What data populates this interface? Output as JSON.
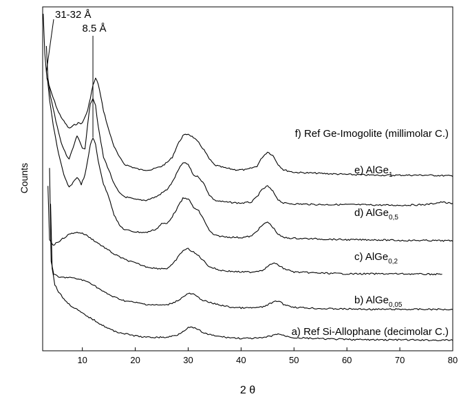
{
  "chart_data": {
    "type": "line",
    "xlabel": "2 θ",
    "ylabel": "Counts",
    "xlim": [
      2.5,
      80
    ],
    "xticks": [
      10,
      20,
      30,
      40,
      50,
      60,
      70,
      80
    ],
    "grid": false,
    "legend": "none",
    "y_units": "arbitrary (curves vertically offset)",
    "annotations": [
      {
        "text": "31-32 Å",
        "x": 3.2,
        "series": "f"
      },
      {
        "text": "8.5 Å",
        "x": 12.0,
        "series": "d"
      }
    ],
    "series": [
      {
        "name": "f",
        "label": {
          "letter": "f)",
          "main": "Ref Ge-Imogolite (millimolar C.)",
          "sub": ""
        },
        "baseline": 4.75,
        "points": [
          [
            2.6,
            9.3
          ],
          [
            2.9,
            8.2
          ],
          [
            3.3,
            7.5
          ],
          [
            3.8,
            7.25
          ],
          [
            4.5,
            6.95
          ],
          [
            5.5,
            6.55
          ],
          [
            6.5,
            6.3
          ],
          [
            7.5,
            6.1
          ],
          [
            8.5,
            6.2
          ],
          [
            9.2,
            6.25
          ],
          [
            10,
            6.25
          ],
          [
            11,
            6.6
          ],
          [
            12,
            7.3
          ],
          [
            12.5,
            7.5
          ],
          [
            13,
            7.35
          ],
          [
            14,
            6.6
          ],
          [
            15,
            6.05
          ],
          [
            16,
            5.6
          ],
          [
            17,
            5.3
          ],
          [
            18,
            5.1
          ],
          [
            19.5,
            5.02
          ],
          [
            21,
            4.95
          ],
          [
            23,
            4.95
          ],
          [
            25,
            5.05
          ],
          [
            26,
            5.15
          ],
          [
            27,
            5.3
          ],
          [
            28,
            5.65
          ],
          [
            29,
            5.9
          ],
          [
            30,
            5.95
          ],
          [
            31,
            5.85
          ],
          [
            32,
            5.7
          ],
          [
            33,
            5.5
          ],
          [
            34,
            5.25
          ],
          [
            35,
            5.08
          ],
          [
            37,
            5.0
          ],
          [
            39,
            4.95
          ],
          [
            41,
            4.95
          ],
          [
            43,
            5.05
          ],
          [
            44,
            5.3
          ],
          [
            45,
            5.45
          ],
          [
            46,
            5.35
          ],
          [
            47,
            5.1
          ],
          [
            48,
            4.95
          ],
          [
            50,
            4.88
          ],
          [
            55,
            4.85
          ],
          [
            60,
            4.82
          ],
          [
            65,
            4.8
          ],
          [
            70,
            4.8
          ],
          [
            75,
            4.8
          ],
          [
            80,
            4.78
          ]
        ]
      },
      {
        "name": "e",
        "label": {
          "letter": "e)",
          "main": "AlGe",
          "sub": "1"
        },
        "baseline": 3.95,
        "points": [
          [
            3.2,
            8.4
          ],
          [
            3.5,
            7.5
          ],
          [
            4,
            7.0
          ],
          [
            5,
            6.3
          ],
          [
            6,
            5.7
          ],
          [
            7,
            5.35
          ],
          [
            7.5,
            5.25
          ],
          [
            8,
            5.45
          ],
          [
            9,
            5.9
          ],
          [
            10,
            5.55
          ],
          [
            10.5,
            5.55
          ],
          [
            11,
            6.2
          ],
          [
            11.5,
            6.8
          ],
          [
            12,
            6.95
          ],
          [
            12.5,
            6.75
          ],
          [
            13,
            6.15
          ],
          [
            14,
            5.3
          ],
          [
            15,
            4.95
          ],
          [
            16,
            4.55
          ],
          [
            17,
            4.3
          ],
          [
            18,
            4.2
          ],
          [
            20,
            4.12
          ],
          [
            22,
            4.1
          ],
          [
            24,
            4.2
          ],
          [
            25,
            4.3
          ],
          [
            26,
            4.4
          ],
          [
            27,
            4.6
          ],
          [
            28,
            4.9
          ],
          [
            29,
            5.15
          ],
          [
            30,
            5.1
          ],
          [
            31,
            4.8
          ],
          [
            32,
            4.75
          ],
          [
            33,
            4.55
          ],
          [
            34,
            4.25
          ],
          [
            35,
            4.1
          ],
          [
            37,
            4.05
          ],
          [
            40,
            4.02
          ],
          [
            42,
            4.05
          ],
          [
            43,
            4.2
          ],
          [
            44,
            4.4
          ],
          [
            45,
            4.5
          ],
          [
            46,
            4.35
          ],
          [
            47,
            4.12
          ],
          [
            48,
            4.02
          ],
          [
            50,
            4.0
          ],
          [
            55,
            3.98
          ],
          [
            60,
            3.98
          ],
          [
            65,
            3.97
          ],
          [
            70,
            3.96
          ],
          [
            75,
            3.98
          ],
          [
            78,
            4.05
          ],
          [
            80,
            4.0
          ]
        ]
      },
      {
        "name": "d",
        "label": {
          "letter": "d)",
          "main": "AlGe",
          "sub": "0,5"
        },
        "baseline": 3.0,
        "points": [
          [
            3.4,
            7.5
          ],
          [
            3.8,
            6.9
          ],
          [
            4.5,
            6.2
          ],
          [
            5.5,
            5.4
          ],
          [
            6.5,
            4.8
          ],
          [
            7.5,
            4.45
          ],
          [
            8.5,
            4.65
          ],
          [
            9,
            4.75
          ],
          [
            9.8,
            4.55
          ],
          [
            10.5,
            4.8
          ],
          [
            11,
            5.2
          ],
          [
            11.5,
            5.65
          ],
          [
            12,
            5.85
          ],
          [
            12.5,
            5.65
          ],
          [
            13,
            5.2
          ],
          [
            14,
            4.55
          ],
          [
            15,
            4.2
          ],
          [
            16,
            3.7
          ],
          [
            17,
            3.4
          ],
          [
            18,
            3.28
          ],
          [
            20,
            3.22
          ],
          [
            22,
            3.2
          ],
          [
            24,
            3.3
          ],
          [
            25,
            3.45
          ],
          [
            26,
            3.45
          ],
          [
            27,
            3.65
          ],
          [
            28,
            3.9
          ],
          [
            29,
            4.15
          ],
          [
            30,
            4.15
          ],
          [
            31,
            3.9
          ],
          [
            32,
            3.8
          ],
          [
            33,
            3.55
          ],
          [
            34,
            3.25
          ],
          [
            35,
            3.12
          ],
          [
            37,
            3.08
          ],
          [
            40,
            3.06
          ],
          [
            42,
            3.1
          ],
          [
            43,
            3.25
          ],
          [
            44,
            3.4
          ],
          [
            45,
            3.5
          ],
          [
            46,
            3.35
          ],
          [
            47,
            3.15
          ],
          [
            48,
            3.06
          ],
          [
            50,
            3.04
          ],
          [
            55,
            3.02
          ],
          [
            60,
            3.0
          ],
          [
            65,
            3.0
          ],
          [
            70,
            2.98
          ],
          [
            75,
            2.98
          ],
          [
            80,
            2.97
          ]
        ]
      },
      {
        "name": "c",
        "label": {
          "letter": "c)",
          "main": "AlGe",
          "sub": "0,2"
        },
        "baseline": 2.05,
        "points": [
          [
            3.5,
            4.5
          ],
          [
            3.8,
            3.0
          ],
          [
            4.5,
            2.85
          ],
          [
            5.5,
            2.95
          ],
          [
            6.5,
            3.05
          ],
          [
            7.5,
            3.15
          ],
          [
            8.5,
            3.2
          ],
          [
            9.5,
            3.2
          ],
          [
            10.5,
            3.15
          ],
          [
            11.5,
            3.05
          ],
          [
            12.5,
            2.95
          ],
          [
            14,
            2.8
          ],
          [
            16,
            2.6
          ],
          [
            18,
            2.45
          ],
          [
            20,
            2.35
          ],
          [
            22,
            2.25
          ],
          [
            24,
            2.2
          ],
          [
            26,
            2.2
          ],
          [
            27,
            2.3
          ],
          [
            28,
            2.5
          ],
          [
            29,
            2.7
          ],
          [
            30,
            2.75
          ],
          [
            31,
            2.65
          ],
          [
            32,
            2.55
          ],
          [
            33,
            2.4
          ],
          [
            34,
            2.25
          ],
          [
            36,
            2.15
          ],
          [
            38,
            2.12
          ],
          [
            40,
            2.1
          ],
          [
            42,
            2.1
          ],
          [
            44,
            2.15
          ],
          [
            45,
            2.25
          ],
          [
            46,
            2.35
          ],
          [
            47,
            2.3
          ],
          [
            48,
            2.2
          ],
          [
            50,
            2.1
          ],
          [
            55,
            2.07
          ],
          [
            60,
            2.05
          ],
          [
            65,
            2.05
          ],
          [
            70,
            2.05
          ],
          [
            75,
            2.04
          ],
          [
            78,
            2.04
          ]
        ]
      },
      {
        "name": "b",
        "label": {
          "letter": "b)",
          "main": "AlGe",
          "sub": "0,05"
        },
        "baseline": 1.05,
        "points": [
          [
            3.8,
            5.0
          ],
          [
            4.1,
            2.4
          ],
          [
            4.6,
            2.05
          ],
          [
            5.5,
            1.95
          ],
          [
            6.5,
            1.95
          ],
          [
            7.5,
            1.95
          ],
          [
            8.5,
            1.92
          ],
          [
            9.5,
            1.9
          ],
          [
            10.5,
            1.85
          ],
          [
            11.5,
            1.8
          ],
          [
            12.5,
            1.7
          ],
          [
            14,
            1.55
          ],
          [
            16,
            1.4
          ],
          [
            18,
            1.3
          ],
          [
            20,
            1.25
          ],
          [
            22,
            1.2
          ],
          [
            24,
            1.18
          ],
          [
            26,
            1.18
          ],
          [
            28,
            1.3
          ],
          [
            29,
            1.4
          ],
          [
            30,
            1.5
          ],
          [
            31,
            1.48
          ],
          [
            32,
            1.38
          ],
          [
            33,
            1.3
          ],
          [
            34,
            1.25
          ],
          [
            36,
            1.18
          ],
          [
            38,
            1.12
          ],
          [
            40,
            1.1
          ],
          [
            42,
            1.1
          ],
          [
            44,
            1.12
          ],
          [
            46,
            1.25
          ],
          [
            47,
            1.3
          ],
          [
            48,
            1.2
          ],
          [
            50,
            1.12
          ],
          [
            55,
            1.08
          ],
          [
            60,
            1.07
          ],
          [
            65,
            1.06
          ],
          [
            70,
            1.06
          ],
          [
            75,
            1.06
          ],
          [
            80,
            1.06
          ]
        ]
      },
      {
        "name": "a",
        "label": {
          "letter": "a)",
          "main": "Ref Si-Allophane (decimolar C.)",
          "sub": ""
        },
        "baseline": 0.2,
        "points": [
          [
            4.0,
            4.0
          ],
          [
            4.3,
            2.2
          ],
          [
            4.8,
            1.75
          ],
          [
            5.5,
            1.55
          ],
          [
            6.5,
            1.35
          ],
          [
            7.5,
            1.2
          ],
          [
            8.5,
            1.1
          ],
          [
            9.5,
            1.0
          ],
          [
            10.5,
            0.9
          ],
          [
            12,
            0.78
          ],
          [
            14,
            0.6
          ],
          [
            16,
            0.45
          ],
          [
            18,
            0.38
          ],
          [
            20,
            0.32
          ],
          [
            22,
            0.28
          ],
          [
            24,
            0.28
          ],
          [
            26,
            0.28
          ],
          [
            28,
            0.35
          ],
          [
            29,
            0.45
          ],
          [
            30,
            0.55
          ],
          [
            31,
            0.55
          ],
          [
            32,
            0.48
          ],
          [
            33,
            0.4
          ],
          [
            34,
            0.35
          ],
          [
            36,
            0.3
          ],
          [
            38,
            0.27
          ],
          [
            40,
            0.25
          ],
          [
            42,
            0.25
          ],
          [
            44,
            0.26
          ],
          [
            46,
            0.33
          ],
          [
            47,
            0.38
          ],
          [
            48,
            0.33
          ],
          [
            50,
            0.27
          ],
          [
            55,
            0.24
          ],
          [
            60,
            0.22
          ],
          [
            65,
            0.21
          ],
          [
            70,
            0.21
          ],
          [
            75,
            0.2
          ],
          [
            80,
            0.2
          ]
        ]
      }
    ]
  }
}
